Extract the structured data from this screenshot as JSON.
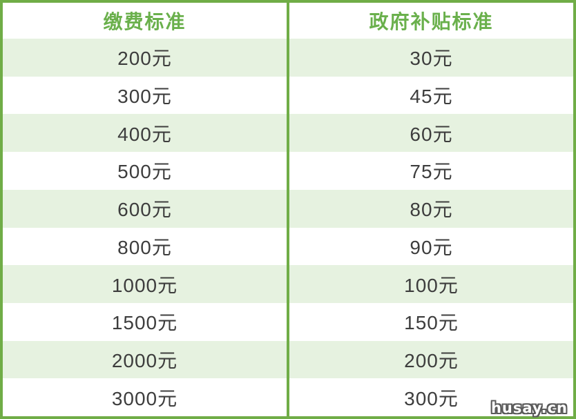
{
  "table": {
    "columns": [
      "缴费标准",
      "政府补贴标准"
    ],
    "rows": [
      {
        "fee": "200元",
        "subsidy": "30元"
      },
      {
        "fee": "300元",
        "subsidy": "45元"
      },
      {
        "fee": "400元",
        "subsidy": "60元"
      },
      {
        "fee": "500元",
        "subsidy": "75元"
      },
      {
        "fee": "600元",
        "subsidy": "80元"
      },
      {
        "fee": "800元",
        "subsidy": "90元"
      },
      {
        "fee": "1000元",
        "subsidy": "100元"
      },
      {
        "fee": "1500元",
        "subsidy": "150元"
      },
      {
        "fee": "2000元",
        "subsidy": "200元"
      },
      {
        "fee": "3000元",
        "subsidy": "300元"
      }
    ]
  },
  "watermark": {
    "text": "husay.cn"
  },
  "colors": {
    "border_green": "#70ad47",
    "band_green": "#e6f2e0",
    "header_text_green": "#6ab04c",
    "cell_text": "#3d3d3d",
    "watermark_fill": "#ffffff",
    "watermark_outline": "#5a5a5a"
  },
  "chart_data": {
    "type": "table",
    "title": "",
    "columns": [
      "缴费标准",
      "政府补贴标准"
    ],
    "rows": [
      [
        "200元",
        "30元"
      ],
      [
        "300元",
        "45元"
      ],
      [
        "400元",
        "60元"
      ],
      [
        "500元",
        "75元"
      ],
      [
        "600元",
        "80元"
      ],
      [
        "800元",
        "90元"
      ],
      [
        "1000元",
        "100元"
      ],
      [
        "1500元",
        "150元"
      ],
      [
        "2000元",
        "200元"
      ],
      [
        "3000元",
        "300元"
      ]
    ],
    "fee_values_yuan": [
      200,
      300,
      400,
      500,
      600,
      800,
      1000,
      1500,
      2000,
      3000
    ],
    "subsidy_values_yuan": [
      30,
      45,
      60,
      75,
      80,
      90,
      100,
      150,
      200,
      300
    ],
    "layout": "two-column table, green 4px outer border and center divider, white header row with green bold text, alternating light-green/white banded rows starting light-green"
  }
}
